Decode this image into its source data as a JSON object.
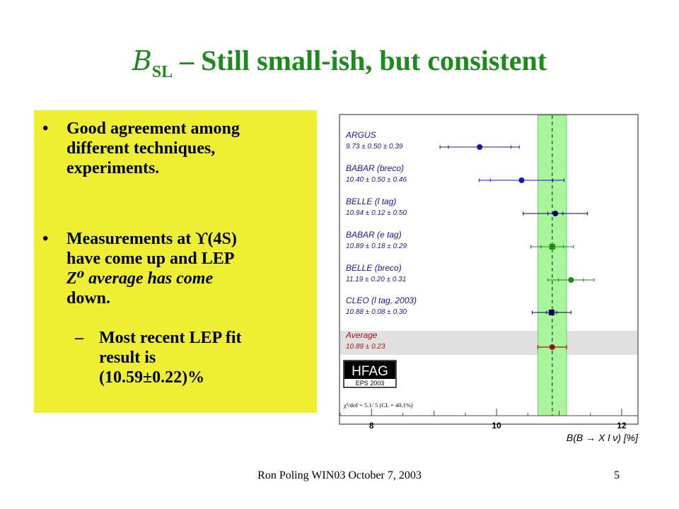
{
  "slide": {
    "title_symbol": "B",
    "title_subscript": "SL",
    "title_rest": " – Still small-ish, but consistent",
    "bullets": [
      {
        "mark": "•",
        "lines": [
          "Good agreement among",
          "different techniques,",
          "experiments."
        ]
      },
      {
        "mark": "•",
        "lines": [
          "Measurements at ϒ(4S)",
          "have come up and LEP",
          "Z⁰ average has come",
          "down."
        ]
      }
    ],
    "subbullet": {
      "mark": "–",
      "lines": [
        "Most recent LEP fit",
        "result is",
        "(10.59±0.22)%"
      ]
    },
    "footer": "Ron Poling WIN03 October 7, 2003",
    "page_number": "5"
  },
  "chart_data": {
    "type": "scatter",
    "xlabel": "B(B → X l ν) [%]",
    "xlim": [
      7.5,
      12.25
    ],
    "x_ticks": [
      "8",
      "10",
      "12"
    ],
    "average_band": [
      10.66,
      11.12
    ],
    "average_line": 10.89,
    "logo": {
      "name": "HFAG",
      "sub": "EPS 2003"
    },
    "chi2_text": "χ²/dof = 5.1/ 5 (CL = 40.1%)",
    "measurements": [
      {
        "name": "ARGUS",
        "value_label": "9.73 ± 0.50 ± 0.39",
        "value": 9.73,
        "stat": 0.5,
        "syst": 0.39,
        "color": "#1515c0",
        "marker": "circle"
      },
      {
        "name": "BABAR (breco)",
        "value_label": "10.40 ± 0.50 ± 0.46",
        "value": 10.4,
        "stat": 0.5,
        "syst": 0.46,
        "color": "#1515c0",
        "marker": "circle"
      },
      {
        "name": "BELLE (l tag)",
        "value_label": "10.94 ± 0.12 ± 0.50",
        "value": 10.94,
        "stat": 0.12,
        "syst": 0.5,
        "color": "#000060",
        "marker": "circle"
      },
      {
        "name": "BABAR (e tag)",
        "value_label": "10.89 ± 0.18 ± 0.29",
        "value": 10.89,
        "stat": 0.18,
        "syst": 0.29,
        "color": "#109010",
        "marker": "square"
      },
      {
        "name": "BELLE (breco)",
        "value_label": "11.19 ± 0.20 ± 0.31",
        "value": 11.19,
        "stat": 0.2,
        "syst": 0.31,
        "color": "#109010",
        "marker": "circle"
      },
      {
        "name": "CLEO (l tag, 2003)",
        "value_label": "10.88 ± 0.08 ± 0.30",
        "value": 10.88,
        "stat": 0.08,
        "syst": 0.3,
        "color": "#000060",
        "marker": "square"
      }
    ],
    "average": {
      "name": "Average",
      "value_label": "10.89 ± 0.23",
      "value": 10.89,
      "err": 0.23,
      "color": "#a01010",
      "marker": "circle"
    }
  }
}
